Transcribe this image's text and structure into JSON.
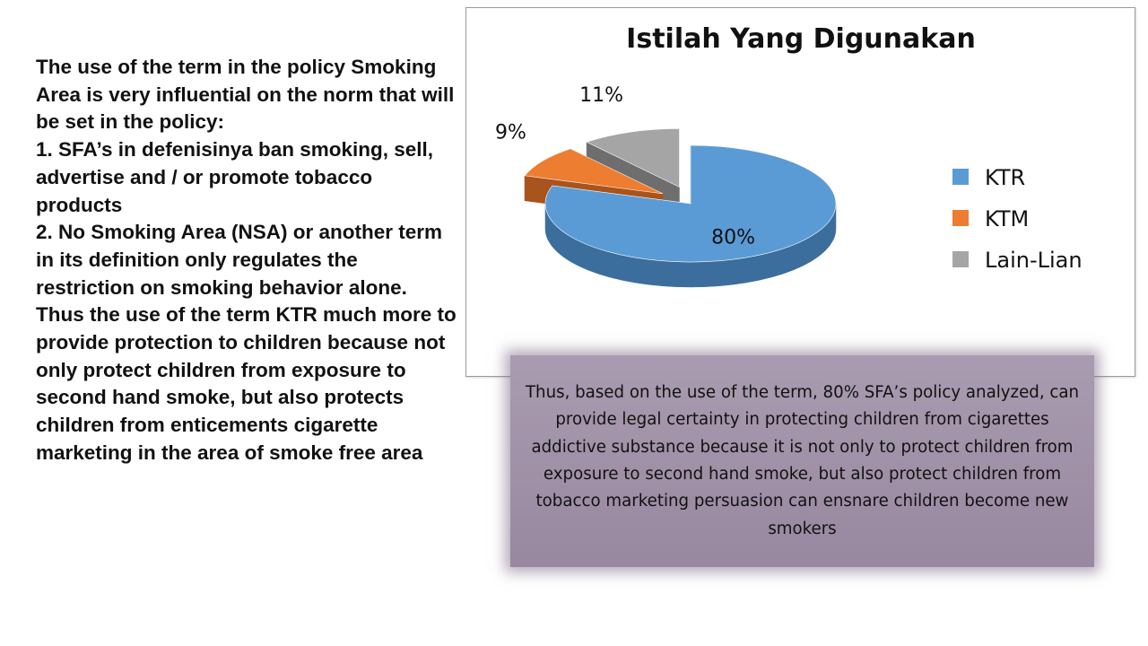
{
  "text_block": {
    "intro": "The use of the term in the policy Smoking Area is very influential on the norm that will be set in the policy:",
    "point1": "1. SFA’s in defenisinya ban smoking, sell, advertise and / or promote tobacco products",
    "point2": "2. No Smoking Area (NSA) or another term in its definition only regulates the restriction on smoking behavior alone.",
    "conclusion": "Thus the use of the term KTR much more to provide protection to children because not only protect children from exposure to second hand smoke, but also protects children from enticements cigarette marketing in the area of smoke free area"
  },
  "callout": {
    "text": "Thus, based on the use of the term, 80% SFA’s policy analyzed, can provide legal certainty in protecting children from cigarettes addictive substance because it is not only to protect children from exposure to second hand smoke, but also protect children from tobacco marketing persuasion can ensnare children become new smokers"
  },
  "chart_data": {
    "type": "pie",
    "title": "Istilah Yang Digunakan",
    "categories": [
      "KTR",
      "KTM",
      "Lain-Lian"
    ],
    "values": [
      80,
      9,
      11
    ],
    "data_labels": [
      "80%",
      "9%",
      "11%"
    ],
    "colors": [
      "#5b9bd5",
      "#ed7d31",
      "#a5a5a5"
    ],
    "side_colors": [
      "#3b6e9c",
      "#a8541c",
      "#6e6e6e"
    ],
    "exploded": [
      "KTM",
      "Lain-Lian"
    ],
    "style": "3d",
    "legend_position": "right"
  }
}
